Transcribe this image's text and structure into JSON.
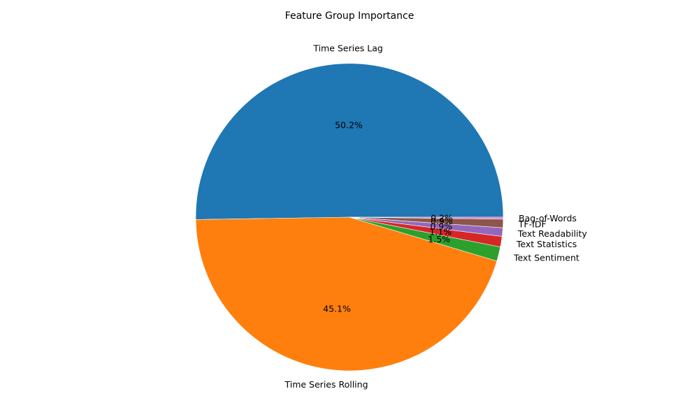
{
  "chart_data": {
    "type": "pie",
    "title": "Feature Group Importance",
    "slices": [
      {
        "label": "Time Series Lag",
        "value": 50.2,
        "pct_label": "50.2%",
        "color": "#1f77b4"
      },
      {
        "label": "Time Series Rolling",
        "value": 45.1,
        "pct_label": "45.1%",
        "color": "#ff7f0e"
      },
      {
        "label": "Text Sentiment",
        "value": 1.5,
        "pct_label": "1.5%",
        "color": "#2ca02c"
      },
      {
        "label": "Text Statistics",
        "value": 1.1,
        "pct_label": "1.1%",
        "color": "#d62728"
      },
      {
        "label": "Text Readability",
        "value": 0.9,
        "pct_label": "0.9%",
        "color": "#9467bd"
      },
      {
        "label": "TF-IDF",
        "value": 0.9,
        "pct_label": "0.9%",
        "color": "#8c564b"
      },
      {
        "label": "Bag-of-Words",
        "value": 0.2,
        "pct_label": "0.2%",
        "color": "#e377c2"
      }
    ],
    "start_angle_deg": 0,
    "direction": "counterclockwise"
  }
}
